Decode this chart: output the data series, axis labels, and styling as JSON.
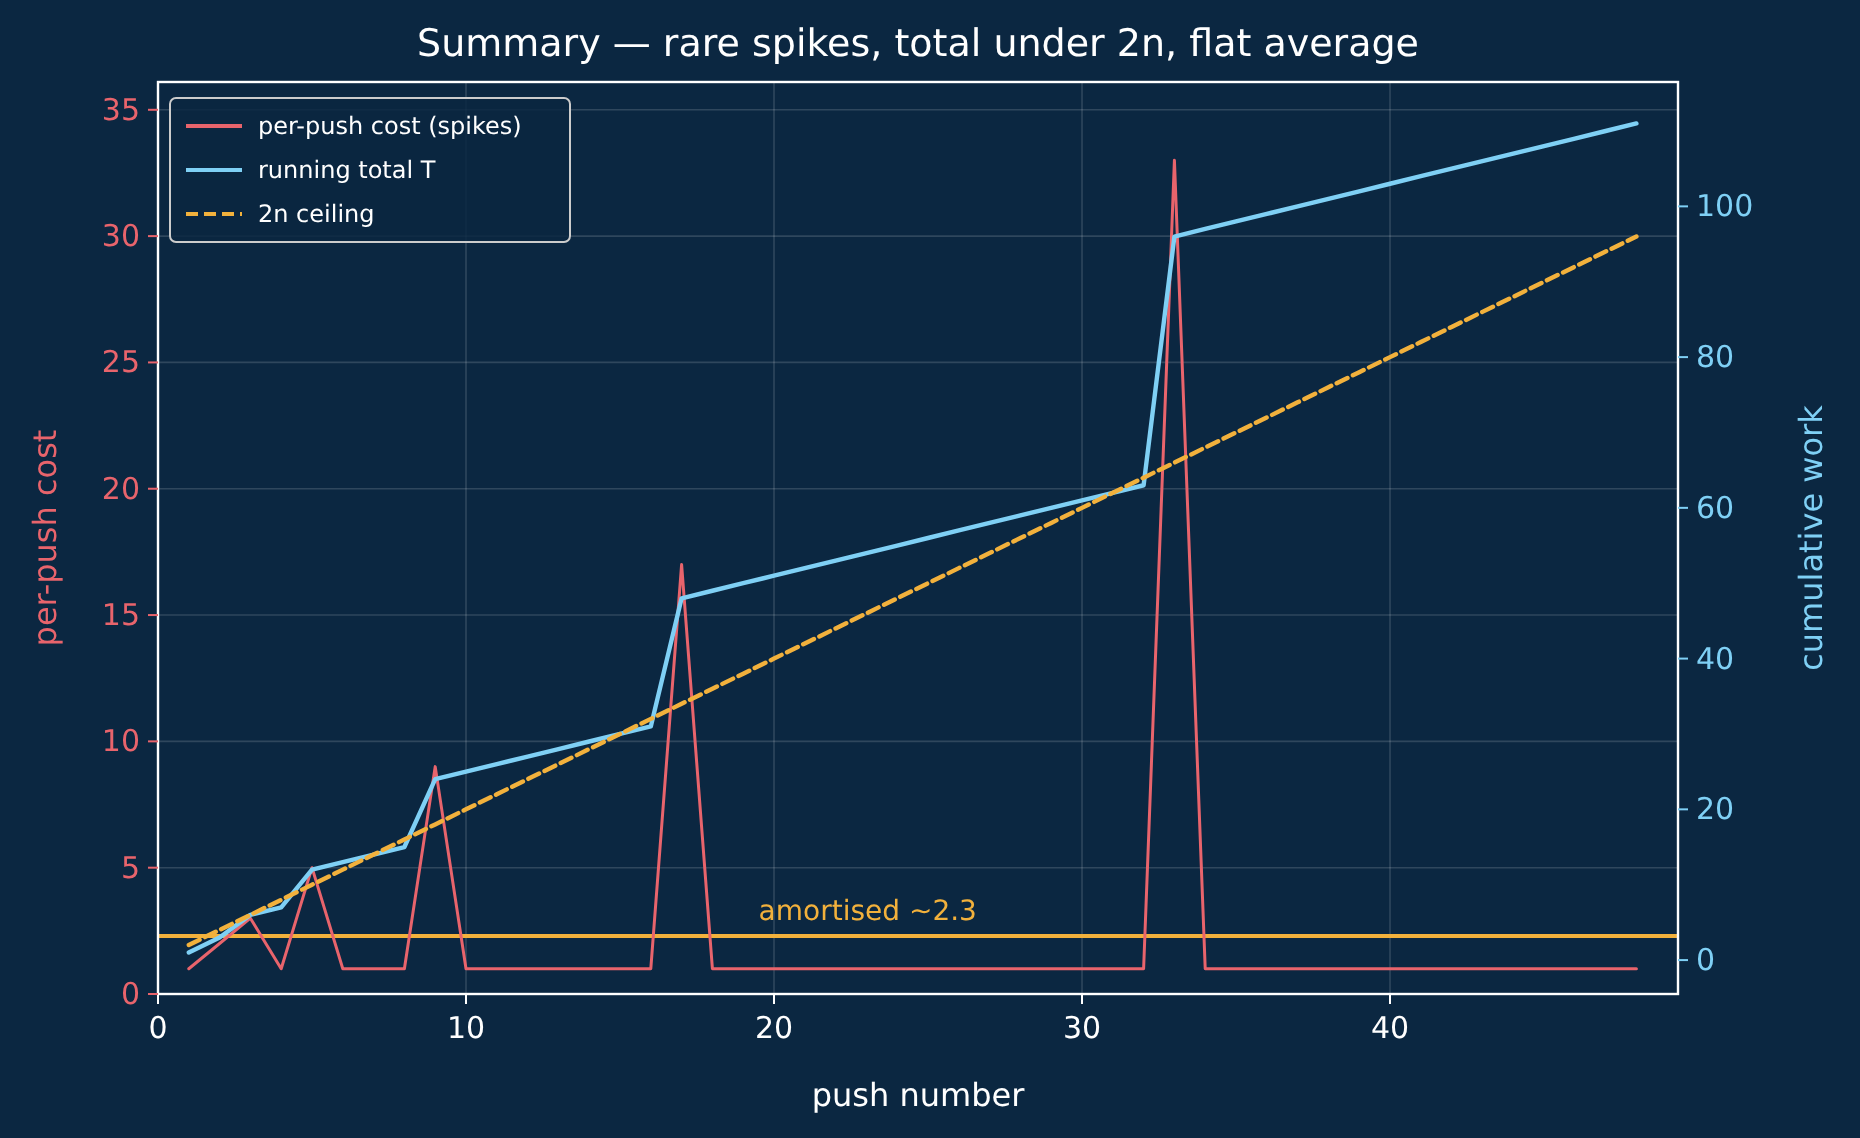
{
  "chart_data": {
    "type": "line",
    "title": "Summary — rare spikes, total under 2n, flat average",
    "xlabel": "push number",
    "ylabel": "per-push cost",
    "y2label": "cumulative work",
    "x": [
      1,
      2,
      3,
      4,
      5,
      6,
      7,
      8,
      9,
      10,
      11,
      12,
      13,
      14,
      15,
      16,
      17,
      18,
      19,
      20,
      21,
      22,
      23,
      24,
      25,
      26,
      27,
      28,
      29,
      30,
      31,
      32,
      33,
      34,
      35,
      36,
      37,
      38,
      39,
      40,
      41,
      42,
      43,
      44,
      45,
      46,
      47,
      48
    ],
    "series": [
      {
        "name": "per-push cost (spikes)",
        "color": "#e8646c",
        "axis": "y",
        "line_style": "solid",
        "values": [
          1,
          2,
          3,
          1,
          5,
          1,
          1,
          1,
          9,
          1,
          1,
          1,
          1,
          1,
          1,
          1,
          17,
          1,
          1,
          1,
          1,
          1,
          1,
          1,
          1,
          1,
          1,
          1,
          1,
          1,
          1,
          1,
          33,
          1,
          1,
          1,
          1,
          1,
          1,
          1,
          1,
          1,
          1,
          1,
          1,
          1,
          1,
          1
        ]
      },
      {
        "name": "running total T",
        "color": "#7fd0f5",
        "axis": "y2",
        "line_style": "solid",
        "values": [
          1,
          3,
          6,
          7,
          12,
          13,
          14,
          15,
          24,
          25,
          26,
          27,
          28,
          29,
          30,
          31,
          48,
          49,
          50,
          51,
          52,
          53,
          54,
          55,
          56,
          57,
          58,
          59,
          60,
          61,
          62,
          63,
          96,
          97,
          98,
          99,
          100,
          101,
          102,
          103,
          104,
          105,
          106,
          107,
          108,
          109,
          110,
          111
        ]
      },
      {
        "name": "2n ceiling",
        "color": "#f2b13c",
        "axis": "y2",
        "line_style": "dashed",
        "values": [
          2,
          4,
          6,
          8,
          10,
          12,
          14,
          16,
          18,
          20,
          22,
          24,
          26,
          28,
          30,
          32,
          34,
          36,
          38,
          40,
          42,
          44,
          46,
          48,
          50,
          52,
          54,
          56,
          58,
          60,
          62,
          64,
          66,
          68,
          70,
          72,
          74,
          76,
          78,
          80,
          82,
          84,
          86,
          88,
          90,
          92,
          94,
          96
        ]
      }
    ],
    "ref_lines": [
      {
        "axis": "y",
        "value": 2.3,
        "label": "amortised ~2.3",
        "color": "#f2b13c"
      }
    ],
    "xlim": [
      0,
      49.35
    ],
    "xticks": [
      0,
      10,
      20,
      30,
      40
    ],
    "ylim": [
      0,
      36.1
    ],
    "yticks": [
      0,
      5,
      10,
      15,
      20,
      25,
      30,
      35
    ],
    "y2lim": [
      -4.5,
      116.5
    ],
    "y2ticks": [
      0,
      20,
      40,
      60,
      80,
      100
    ],
    "grid": true,
    "legend": "top left"
  }
}
